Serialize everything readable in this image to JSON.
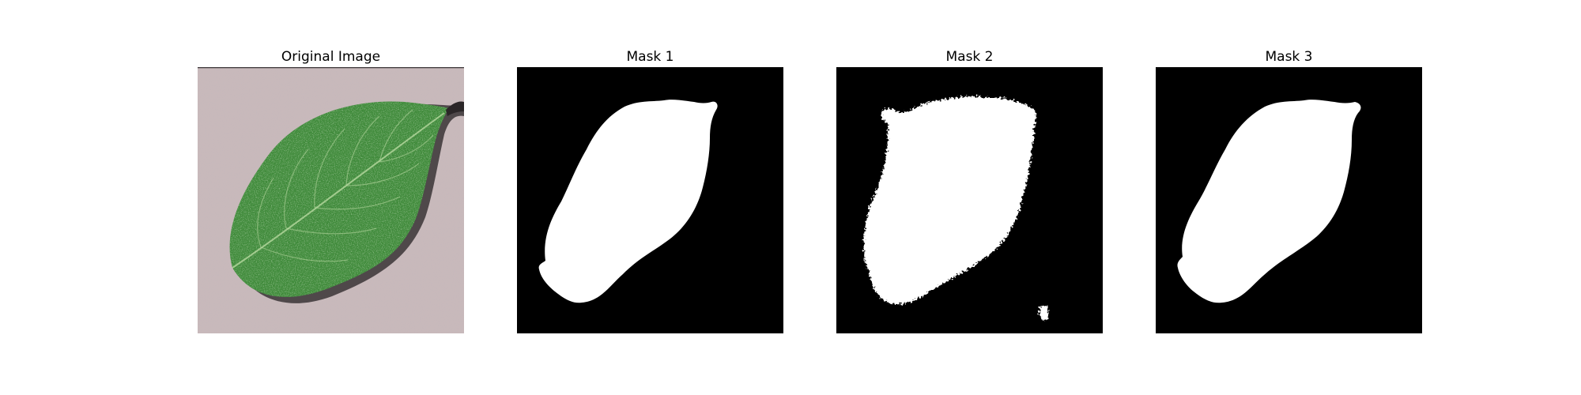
{
  "figure": {
    "panels": [
      {
        "title": "Original Image",
        "content": "leaf-photo"
      },
      {
        "title": "Mask 1",
        "content": "binary-mask"
      },
      {
        "title": "Mask 2",
        "content": "binary-mask"
      },
      {
        "title": "Mask 3",
        "content": "binary-mask"
      }
    ]
  },
  "colors": {
    "mask_background": "#000000",
    "mask_foreground": "#ffffff",
    "leaf": "#3f8a3a",
    "leaf_dark": "#2f6a2c",
    "leaf_vein": "#b8d9a0",
    "ground": "#c9b9bb",
    "shadow": "#3a3436"
  }
}
